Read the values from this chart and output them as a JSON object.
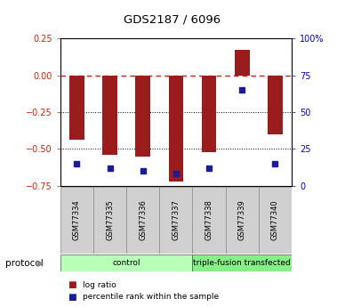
{
  "title": "GDS2187 / 6096",
  "samples": [
    "GSM77334",
    "GSM77335",
    "GSM77336",
    "GSM77337",
    "GSM77338",
    "GSM77339",
    "GSM77340"
  ],
  "log_ratios": [
    -0.44,
    -0.54,
    -0.55,
    -0.72,
    -0.52,
    0.17,
    -0.4
  ],
  "percentile_ranks": [
    15,
    12,
    10,
    8,
    12,
    65,
    15
  ],
  "bar_color": "#9B1C1C",
  "dot_color": "#1C1C9B",
  "ylim_left": [
    -0.75,
    0.25
  ],
  "ylim_right": [
    0,
    100
  ],
  "dotted_lines": [
    -0.25,
    -0.5
  ],
  "groups": [
    {
      "label": "control",
      "start": 0,
      "end": 4,
      "color": "#b8ffb8"
    },
    {
      "label": "triple-fusion transfected",
      "start": 4,
      "end": 7,
      "color": "#88ee88"
    }
  ],
  "protocol_label": "protocol",
  "legend_items": [
    {
      "color": "#9B1C1C",
      "label": "log ratio"
    },
    {
      "color": "#1C1C9B",
      "label": "percentile rank within the sample"
    }
  ],
  "bar_width": 0.45
}
